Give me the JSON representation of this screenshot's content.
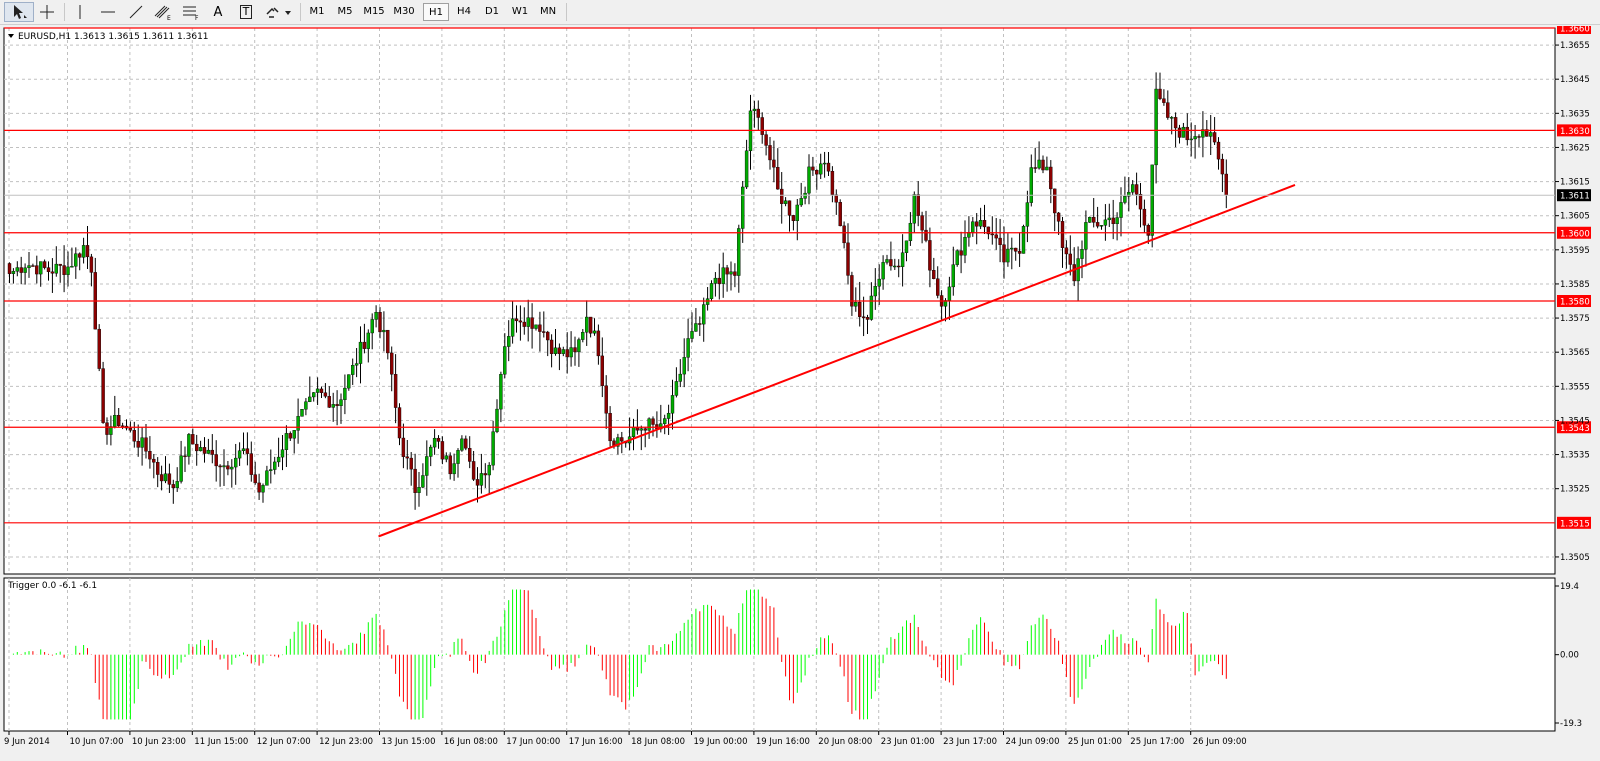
{
  "toolbar": {
    "tools": [
      "cursor-icon",
      "crosshair-icon",
      "vertical-line-icon",
      "horizontal-line-icon",
      "trendline-icon",
      "channel-icon",
      "fibonacci-icon",
      "text-icon",
      "text-label-icon",
      "arrow-shapes-icon"
    ],
    "text_tool": "A",
    "label_tool": "T",
    "timeframes": [
      "M1",
      "M5",
      "M15",
      "M30",
      "H1",
      "H4",
      "D1",
      "W1",
      "MN"
    ],
    "active_timeframe": "H1"
  },
  "main_chart": {
    "header": "EURUSD,H1  1.3613 1.3615 1.3611 1.3611",
    "y_ticks": [
      "1.3655",
      "1.3645",
      "1.3635",
      "1.3625",
      "1.3615",
      "1.3605",
      "1.3595",
      "1.3585",
      "1.3575",
      "1.3565",
      "1.3555",
      "1.3545",
      "1.3535",
      "1.3525",
      "1.3505"
    ],
    "levels": [
      {
        "label": "1.3660",
        "value": 1.366
      },
      {
        "label": "1.3630",
        "value": 1.363
      },
      {
        "label": "1.3600",
        "value": 1.36
      },
      {
        "label": "1.3580",
        "value": 1.358
      },
      {
        "label": "1.3543",
        "value": 1.3543
      },
      {
        "label": "1.3515",
        "value": 1.3515
      }
    ],
    "current_price": "1.3611",
    "trendline": {
      "from": {
        "time": "13 Jun 2014 09:00",
        "price": 1.3511
      },
      "to": {
        "time": "26 Jun 2014 17:00",
        "price": 1.3614
      }
    },
    "colors": {
      "bull": "#00aa00",
      "bear": "#8b0000",
      "level": "#ff0000",
      "grid": "#c0c0c0",
      "background": "#ffffff"
    }
  },
  "indicator": {
    "header": "Trigger 0.0 -6.1 -6.1",
    "y_ticks": [
      "19.4",
      "0.00",
      "-19.3"
    ],
    "colors": {
      "up": "#00ff00",
      "down": "#ff0000"
    }
  },
  "x_ticks": [
    "9 Jun 2014",
    "10 Jun 07:00",
    "10 Jun 23:00",
    "11 Jun 15:00",
    "12 Jun 07:00",
    "12 Jun 23:00",
    "13 Jun 15:00",
    "16 Jun 08:00",
    "17 Jun 00:00",
    "17 Jun 16:00",
    "18 Jun 08:00",
    "19 Jun 00:00",
    "19 Jun 16:00",
    "20 Jun 08:00",
    "23 Jun 01:00",
    "23 Jun 17:00",
    "24 Jun 09:00",
    "25 Jun 01:00",
    "25 Jun 17:00",
    "26 Jun 09:00"
  ],
  "chart_data": {
    "type": "candlestick",
    "symbol": "EURUSD",
    "timeframe": "H1",
    "ylim": [
      1.35,
      1.366
    ],
    "indicator_ylim": [
      -19.3,
      19.4
    ],
    "anchors": [
      [
        0,
        1.3588
      ],
      [
        4,
        1.3591
      ],
      [
        10,
        1.3589
      ],
      [
        15,
        1.359
      ],
      [
        19,
        1.3596
      ],
      [
        21,
        1.359
      ],
      [
        24,
        1.3542
      ],
      [
        28,
        1.3545
      ],
      [
        36,
        1.3535
      ],
      [
        38,
        1.353
      ],
      [
        42,
        1.3526
      ],
      [
        46,
        1.3539
      ],
      [
        51,
        1.3535
      ],
      [
        55,
        1.3532
      ],
      [
        60,
        1.3536
      ],
      [
        64,
        1.3524
      ],
      [
        71,
        1.354
      ],
      [
        79,
        1.3553
      ],
      [
        84,
        1.355
      ],
      [
        88,
        1.356
      ],
      [
        94,
        1.3577
      ],
      [
        97,
        1.3565
      ],
      [
        100,
        1.354
      ],
      [
        104,
        1.3525
      ],
      [
        109,
        1.3539
      ],
      [
        113,
        1.3531
      ],
      [
        116,
        1.3542
      ],
      [
        119,
        1.3526
      ],
      [
        123,
        1.3533
      ],
      [
        127,
        1.3568
      ],
      [
        130,
        1.3576
      ],
      [
        136,
        1.3573
      ],
      [
        140,
        1.3565
      ],
      [
        145,
        1.3564
      ],
      [
        148,
        1.3576
      ],
      [
        151,
        1.3566
      ],
      [
        154,
        1.354
      ],
      [
        158,
        1.3539
      ],
      [
        163,
        1.3544
      ],
      [
        167,
        1.3542
      ],
      [
        170,
        1.355
      ],
      [
        174,
        1.3568
      ],
      [
        177,
        1.3573
      ],
      [
        181,
        1.3587
      ],
      [
        186,
        1.3588
      ],
      [
        190,
        1.3636
      ],
      [
        193,
        1.3631
      ],
      [
        197,
        1.3612
      ],
      [
        201,
        1.3605
      ],
      [
        205,
        1.3617
      ],
      [
        209,
        1.3622
      ],
      [
        213,
        1.3603
      ],
      [
        216,
        1.3579
      ],
      [
        220,
        1.3575
      ],
      [
        224,
        1.3593
      ],
      [
        228,
        1.359
      ],
      [
        232,
        1.361
      ],
      [
        236,
        1.3591
      ],
      [
        239,
        1.3579
      ],
      [
        243,
        1.3593
      ],
      [
        247,
        1.3604
      ],
      [
        251,
        1.3601
      ],
      [
        255,
        1.3592
      ],
      [
        259,
        1.3596
      ],
      [
        262,
        1.3618
      ],
      [
        266,
        1.362
      ],
      [
        270,
        1.3595
      ],
      [
        273,
        1.3587
      ],
      [
        276,
        1.3602
      ],
      [
        280,
        1.3603
      ],
      [
        284,
        1.3605
      ],
      [
        288,
        1.3614
      ],
      [
        292,
        1.3601
      ],
      [
        294,
        1.364
      ],
      [
        298,
        1.3632
      ],
      [
        302,
        1.3628
      ],
      [
        306,
        1.3631
      ],
      [
        309,
        1.3625
      ],
      [
        312,
        1.3613
      ]
    ],
    "last_price": 1.3611
  }
}
